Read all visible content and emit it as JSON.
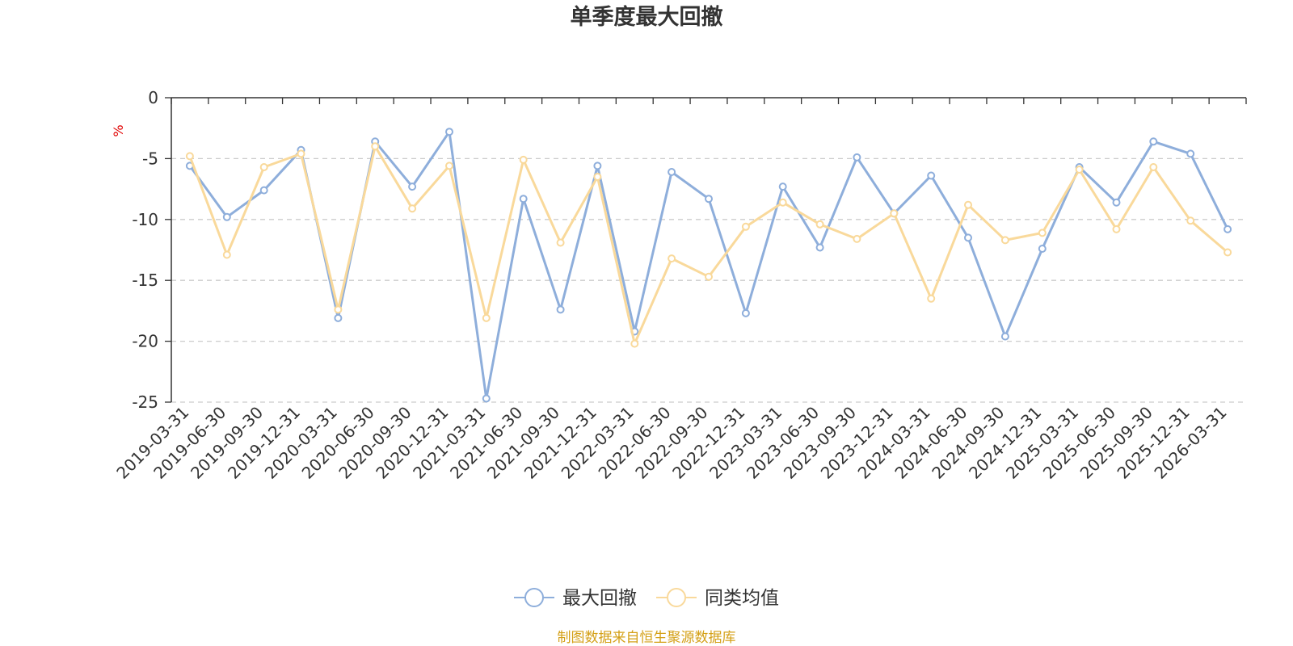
{
  "chart_data": {
    "type": "line",
    "title": "单季度最大回撤",
    "ylabel": "%",
    "ylim": [
      -25,
      0
    ],
    "yticks": [
      0,
      -5,
      -10,
      -15,
      -20,
      -25
    ],
    "grid": true,
    "legend_position": "bottom-center",
    "categories": [
      "2019-03-31",
      "2019-06-30",
      "2019-09-30",
      "2019-12-31",
      "2020-03-31",
      "2020-06-30",
      "2020-09-30",
      "2020-12-31",
      "2021-03-31",
      "2021-06-30",
      "2021-09-30",
      "2021-12-31",
      "2022-03-31",
      "2022-06-30",
      "2022-09-30",
      "2022-12-31",
      "2023-03-31",
      "2023-06-30",
      "2023-09-30",
      "2023-12-31",
      "2024-03-31",
      "2024-06-30",
      "2024-09-30",
      "2024-12-31",
      "2025-03-31",
      "2025-06-30",
      "2025-09-30",
      "2025-12-31",
      "2026-03-31"
    ],
    "series": [
      {
        "name": "最大回撤",
        "color": "#8eaedb",
        "values": [
          -5.6,
          -9.8,
          -7.6,
          -4.3,
          -18.1,
          -3.6,
          -7.3,
          -2.8,
          -24.7,
          -8.3,
          -17.4,
          -5.6,
          -19.2,
          -6.1,
          -8.3,
          -17.7,
          -7.3,
          -12.3,
          -4.9,
          -9.5,
          -6.4,
          -11.5,
          -19.6,
          -12.4,
          -5.7,
          -8.6,
          -3.6,
          -4.6,
          -10.8
        ]
      },
      {
        "name": "同类均值",
        "color": "#f9d99b",
        "values": [
          -4.8,
          -12.9,
          -5.7,
          -4.6,
          -17.4,
          -4.0,
          -9.1,
          -5.6,
          -18.1,
          -5.1,
          -11.9,
          -6.5,
          -20.2,
          -13.2,
          -14.7,
          -10.6,
          -8.6,
          -10.4,
          -11.6,
          -9.5,
          -16.5,
          -8.8,
          -11.7,
          -11.1,
          -5.9,
          -10.8,
          -5.7,
          -10.1,
          -12.7
        ]
      }
    ]
  },
  "source_note": {
    "text": "制图数据来自恒生聚源数据库",
    "color": "#d4a017"
  },
  "colors": {
    "unit_label": "#e00000",
    "axis": "#333333",
    "grid": "#cccccc"
  }
}
